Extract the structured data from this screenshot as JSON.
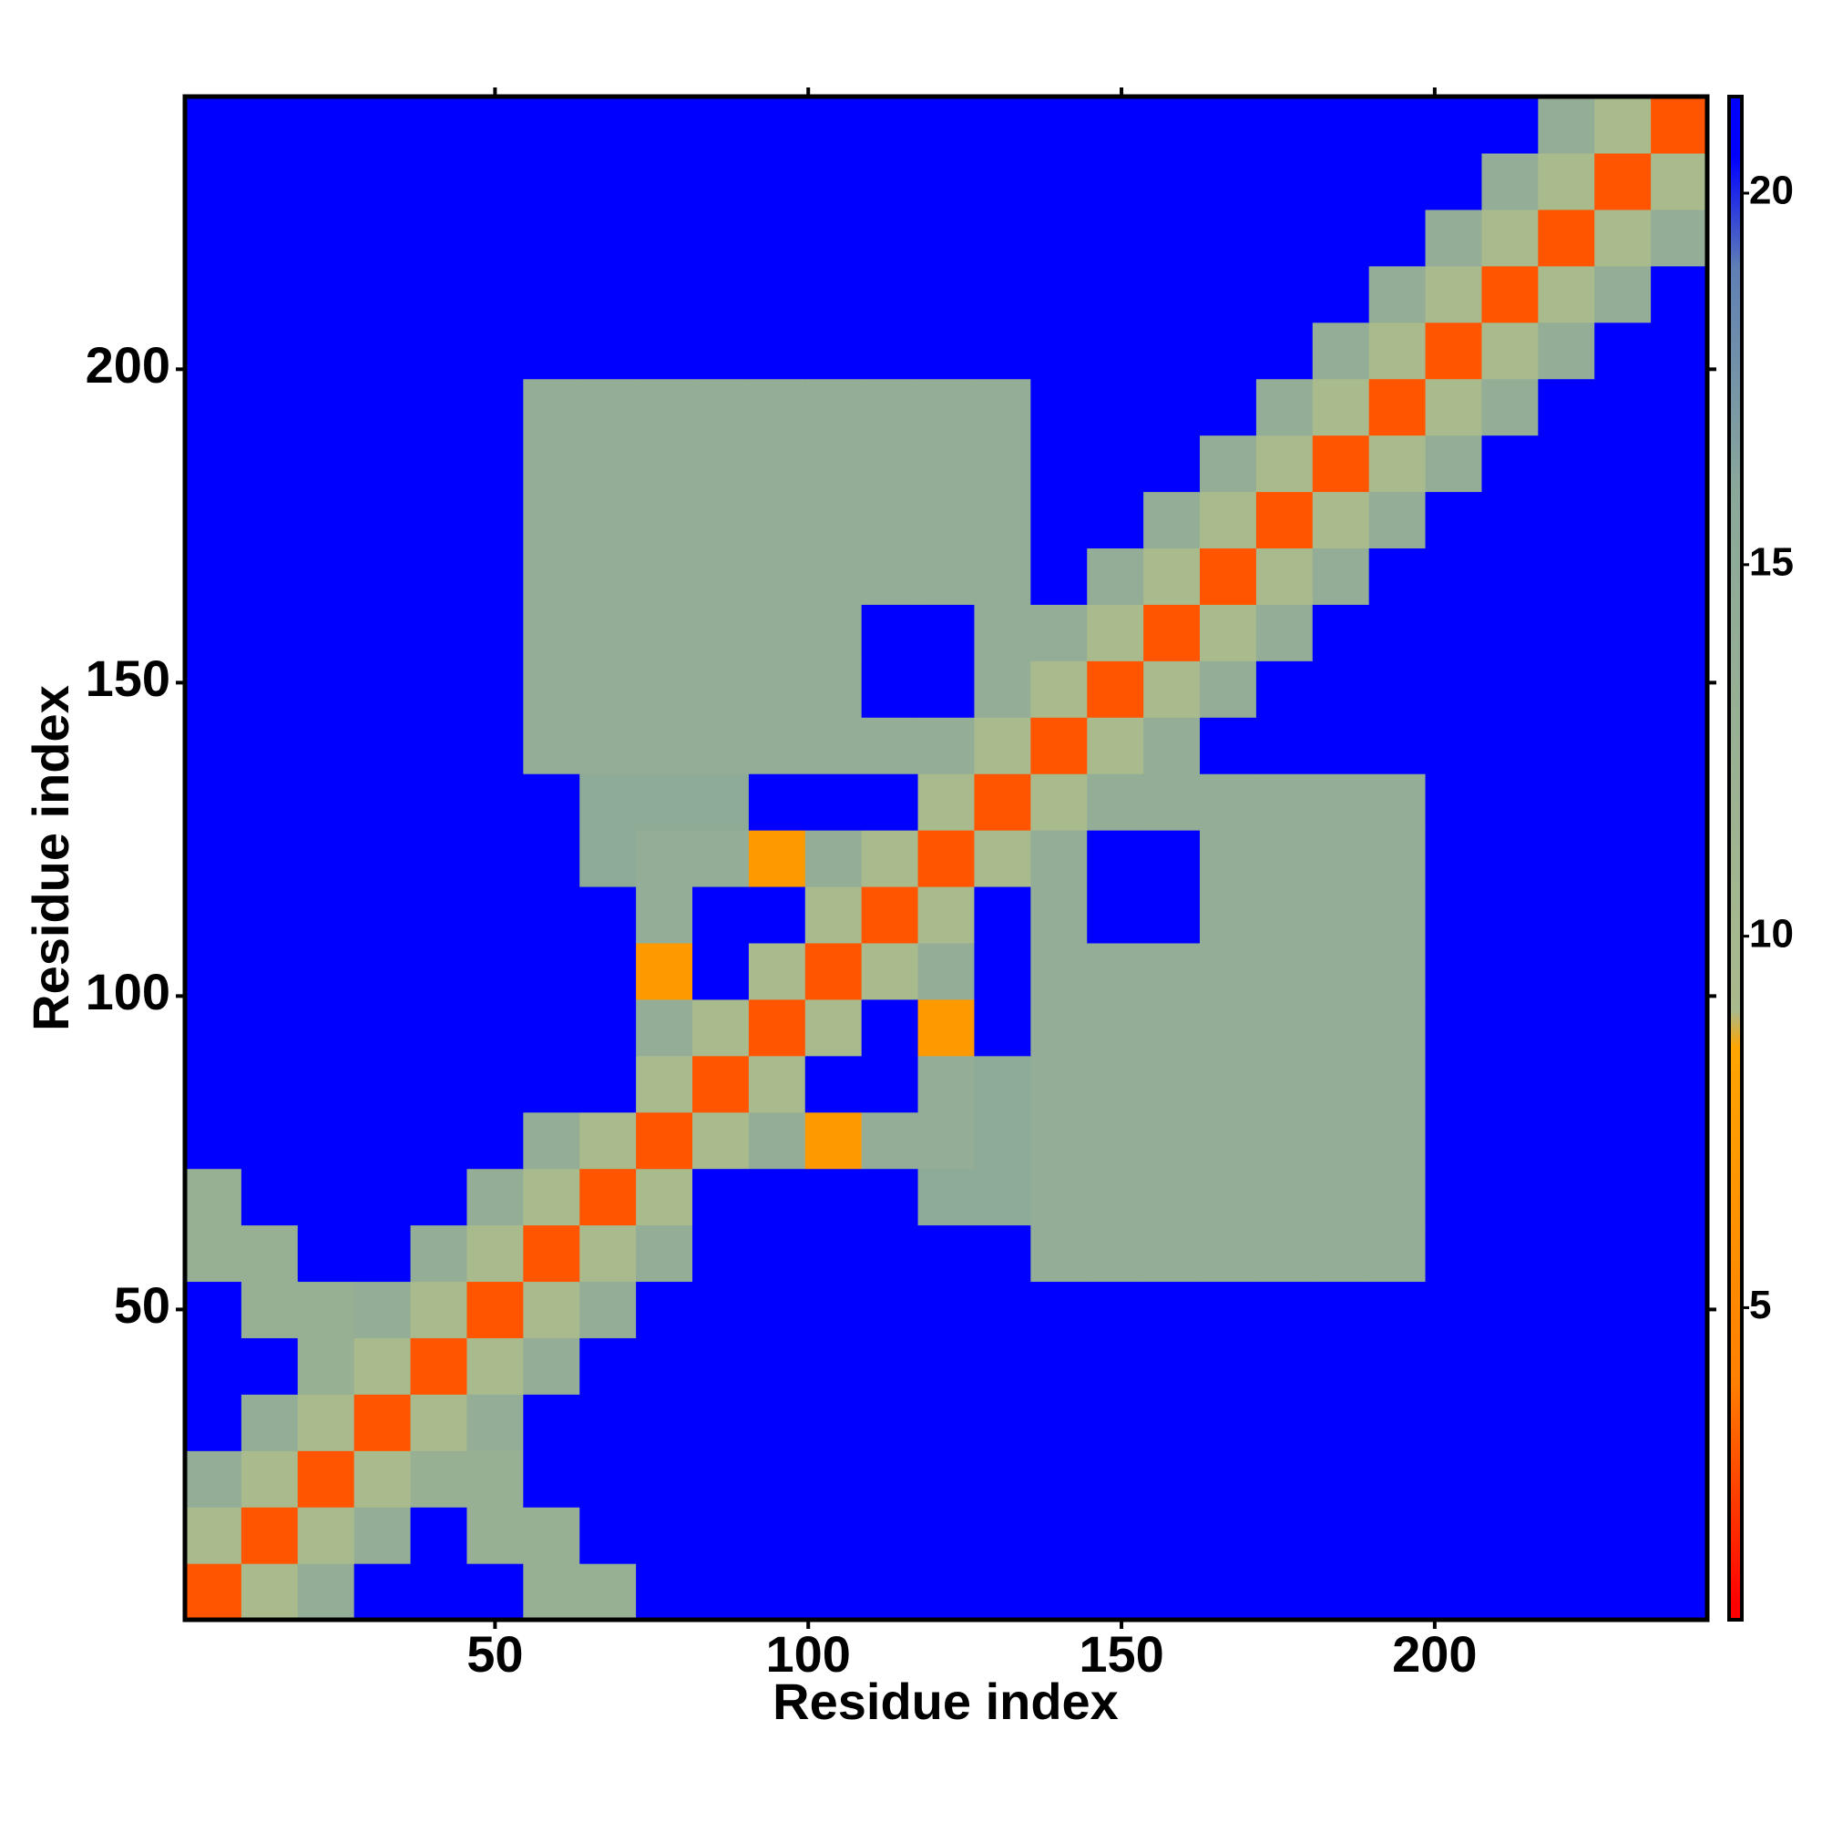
{
  "chart_data": {
    "type": "heatmap",
    "x_label": "Residue index",
    "y_label": "Residue index",
    "xlim": [
      0.5,
      243.5
    ],
    "ylim": [
      0.5,
      243.5
    ],
    "xticks": [
      50,
      100,
      150,
      200
    ],
    "yticks": [
      50,
      100,
      150,
      200
    ],
    "zlim": [
      0.8,
      21.3
    ],
    "zticks": [
      5,
      10,
      15,
      20
    ],
    "colorscale": [
      [
        1,
        "#ff0000"
      ],
      [
        4,
        "#ff8000"
      ],
      [
        8.5,
        "#ffa500"
      ],
      [
        9,
        "#a9ba8c"
      ],
      [
        16,
        "#8aa89a"
      ],
      [
        19,
        "#5f7fb5"
      ],
      [
        20.5,
        "#0000ff"
      ]
    ],
    "xbins": [
      0.5,
      9.5,
      18.5,
      27.5,
      36.5,
      45.5,
      54.5,
      63.5,
      72.5,
      81.5,
      90.5,
      99.5,
      108.5,
      117.5,
      126.5,
      135.5,
      144.5,
      153.5,
      162.5,
      171.5,
      180.5,
      189.5,
      198.5,
      207.5,
      216.5,
      225.5,
      234.5,
      243.5
    ],
    "ybins": [
      0.5,
      9.5,
      18.5,
      27.5,
      36.5,
      45.5,
      54.5,
      63.5,
      72.5,
      81.5,
      90.5,
      99.5,
      108.5,
      117.5,
      126.5,
      135.5,
      144.5,
      153.5,
      162.5,
      171.5,
      180.5,
      189.5,
      198.5,
      207.5,
      216.5,
      225.5,
      234.5,
      243.5
    ],
    "z": [
      [
        3,
        9,
        14,
        21,
        21,
        21,
        13,
        13,
        21,
        21,
        21,
        21,
        21,
        21,
        21,
        21,
        21,
        21,
        21,
        21,
        21,
        21,
        21,
        21,
        21,
        21,
        21
      ],
      [
        9,
        3,
        9,
        14,
        21,
        13,
        13,
        21,
        21,
        21,
        21,
        21,
        21,
        21,
        21,
        21,
        21,
        21,
        21,
        21,
        21,
        21,
        21,
        21,
        21,
        21,
        21
      ],
      [
        14,
        9,
        3,
        9,
        13,
        13,
        21,
        21,
        21,
        21,
        21,
        21,
        21,
        21,
        21,
        21,
        21,
        21,
        21,
        21,
        21,
        21,
        21,
        21,
        21,
        21,
        21
      ],
      [
        21,
        14,
        9,
        3,
        9,
        14,
        21,
        21,
        21,
        21,
        21,
        21,
        21,
        21,
        21,
        21,
        21,
        21,
        21,
        21,
        21,
        21,
        21,
        21,
        21,
        21,
        21
      ],
      [
        21,
        21,
        13,
        9,
        3,
        9,
        14,
        21,
        21,
        21,
        21,
        21,
        21,
        21,
        21,
        21,
        21,
        21,
        21,
        21,
        21,
        21,
        21,
        21,
        21,
        21,
        21
      ],
      [
        21,
        13,
        13,
        14,
        9,
        3,
        9,
        14,
        21,
        21,
        21,
        21,
        21,
        21,
        21,
        21,
        21,
        21,
        21,
        21,
        21,
        21,
        21,
        21,
        21,
        21,
        21
      ],
      [
        13,
        13,
        21,
        21,
        14,
        9,
        3,
        9,
        14,
        21,
        21,
        21,
        21,
        21,
        21,
        14,
        14,
        14,
        14,
        14,
        14,
        14,
        21,
        21,
        21,
        21,
        21
      ],
      [
        13,
        21,
        21,
        21,
        21,
        14,
        9,
        3,
        9,
        21,
        21,
        21,
        21,
        15,
        15,
        14,
        14,
        14,
        14,
        14,
        14,
        14,
        21,
        21,
        21,
        21,
        21
      ],
      [
        21,
        21,
        21,
        21,
        21,
        21,
        14,
        9,
        3,
        9,
        14,
        7,
        14,
        14,
        15,
        14,
        14,
        14,
        14,
        14,
        14,
        14,
        21,
        21,
        21,
        21,
        21
      ],
      [
        21,
        21,
        21,
        21,
        21,
        21,
        21,
        21,
        9,
        3,
        9,
        21,
        21,
        14,
        15,
        14,
        14,
        14,
        14,
        14,
        14,
        14,
        21,
        21,
        21,
        21,
        21
      ],
      [
        21,
        21,
        21,
        21,
        21,
        21,
        21,
        21,
        14,
        9,
        3,
        9,
        21,
        7,
        21,
        14,
        14,
        14,
        14,
        14,
        14,
        14,
        21,
        21,
        21,
        21,
        21
      ],
      [
        21,
        21,
        21,
        21,
        21,
        21,
        21,
        21,
        7,
        21,
        9,
        3,
        9,
        14,
        21,
        14,
        14,
        14,
        14,
        14,
        14,
        14,
        21,
        21,
        21,
        21,
        21
      ],
      [
        21,
        21,
        21,
        21,
        21,
        21,
        21,
        21,
        14,
        21,
        21,
        9,
        3,
        9,
        21,
        14,
        21,
        21,
        14,
        14,
        14,
        14,
        21,
        21,
        21,
        21,
        21
      ],
      [
        21,
        21,
        21,
        21,
        21,
        21,
        21,
        15,
        14,
        14,
        7,
        14,
        9,
        3,
        9,
        14,
        21,
        21,
        14,
        14,
        14,
        14,
        21,
        21,
        21,
        21,
        21
      ],
      [
        21,
        21,
        21,
        21,
        21,
        21,
        21,
        15,
        15,
        15,
        21,
        21,
        21,
        9,
        3,
        9,
        14,
        14,
        14,
        14,
        14,
        14,
        21,
        21,
        21,
        21,
        21
      ],
      [
        21,
        21,
        21,
        21,
        21,
        21,
        14,
        14,
        14,
        14,
        14,
        14,
        14,
        14,
        9,
        3,
        9,
        14,
        21,
        21,
        21,
        21,
        21,
        21,
        21,
        21,
        21
      ],
      [
        21,
        21,
        21,
        21,
        21,
        21,
        14,
        14,
        14,
        14,
        14,
        14,
        21,
        21,
        14,
        9,
        3,
        9,
        14,
        21,
        21,
        21,
        21,
        21,
        21,
        21,
        21
      ],
      [
        21,
        21,
        21,
        21,
        21,
        21,
        14,
        14,
        14,
        14,
        14,
        14,
        21,
        21,
        14,
        14,
        9,
        3,
        9,
        14,
        21,
        21,
        21,
        21,
        21,
        21,
        21
      ],
      [
        21,
        21,
        21,
        21,
        21,
        21,
        14,
        14,
        14,
        14,
        14,
        14,
        14,
        14,
        14,
        21,
        14,
        9,
        3,
        9,
        14,
        21,
        21,
        21,
        21,
        21,
        21
      ],
      [
        21,
        21,
        21,
        21,
        21,
        21,
        14,
        14,
        14,
        14,
        14,
        14,
        14,
        14,
        14,
        21,
        21,
        14,
        9,
        3,
        9,
        14,
        21,
        21,
        21,
        21,
        21
      ],
      [
        21,
        21,
        21,
        21,
        21,
        21,
        14,
        14,
        14,
        14,
        14,
        14,
        14,
        14,
        14,
        21,
        21,
        21,
        14,
        9,
        3,
        9,
        14,
        21,
        21,
        21,
        21
      ],
      [
        21,
        21,
        21,
        21,
        21,
        21,
        14,
        14,
        14,
        14,
        14,
        14,
        14,
        14,
        14,
        21,
        21,
        21,
        21,
        14,
        9,
        3,
        9,
        14,
        21,
        21,
        21
      ],
      [
        21,
        21,
        21,
        21,
        21,
        21,
        21,
        21,
        21,
        21,
        21,
        21,
        21,
        21,
        21,
        21,
        21,
        21,
        21,
        21,
        14,
        9,
        3,
        9,
        14,
        21,
        21
      ],
      [
        21,
        21,
        21,
        21,
        21,
        21,
        21,
        21,
        21,
        21,
        21,
        21,
        21,
        21,
        21,
        21,
        21,
        21,
        21,
        21,
        21,
        14,
        9,
        3,
        9,
        14,
        21
      ],
      [
        21,
        21,
        21,
        21,
        21,
        21,
        21,
        21,
        21,
        21,
        21,
        21,
        21,
        21,
        21,
        21,
        21,
        21,
        21,
        21,
        21,
        21,
        14,
        9,
        3,
        9,
        14
      ],
      [
        21,
        21,
        21,
        21,
        21,
        21,
        21,
        21,
        21,
        21,
        21,
        21,
        21,
        21,
        21,
        21,
        21,
        21,
        21,
        21,
        21,
        21,
        21,
        14,
        9,
        3,
        9
      ],
      [
        21,
        21,
        21,
        21,
        21,
        21,
        21,
        21,
        21,
        21,
        21,
        21,
        21,
        21,
        21,
        21,
        21,
        21,
        21,
        21,
        21,
        21,
        21,
        21,
        14,
        9,
        3
      ]
    ]
  }
}
